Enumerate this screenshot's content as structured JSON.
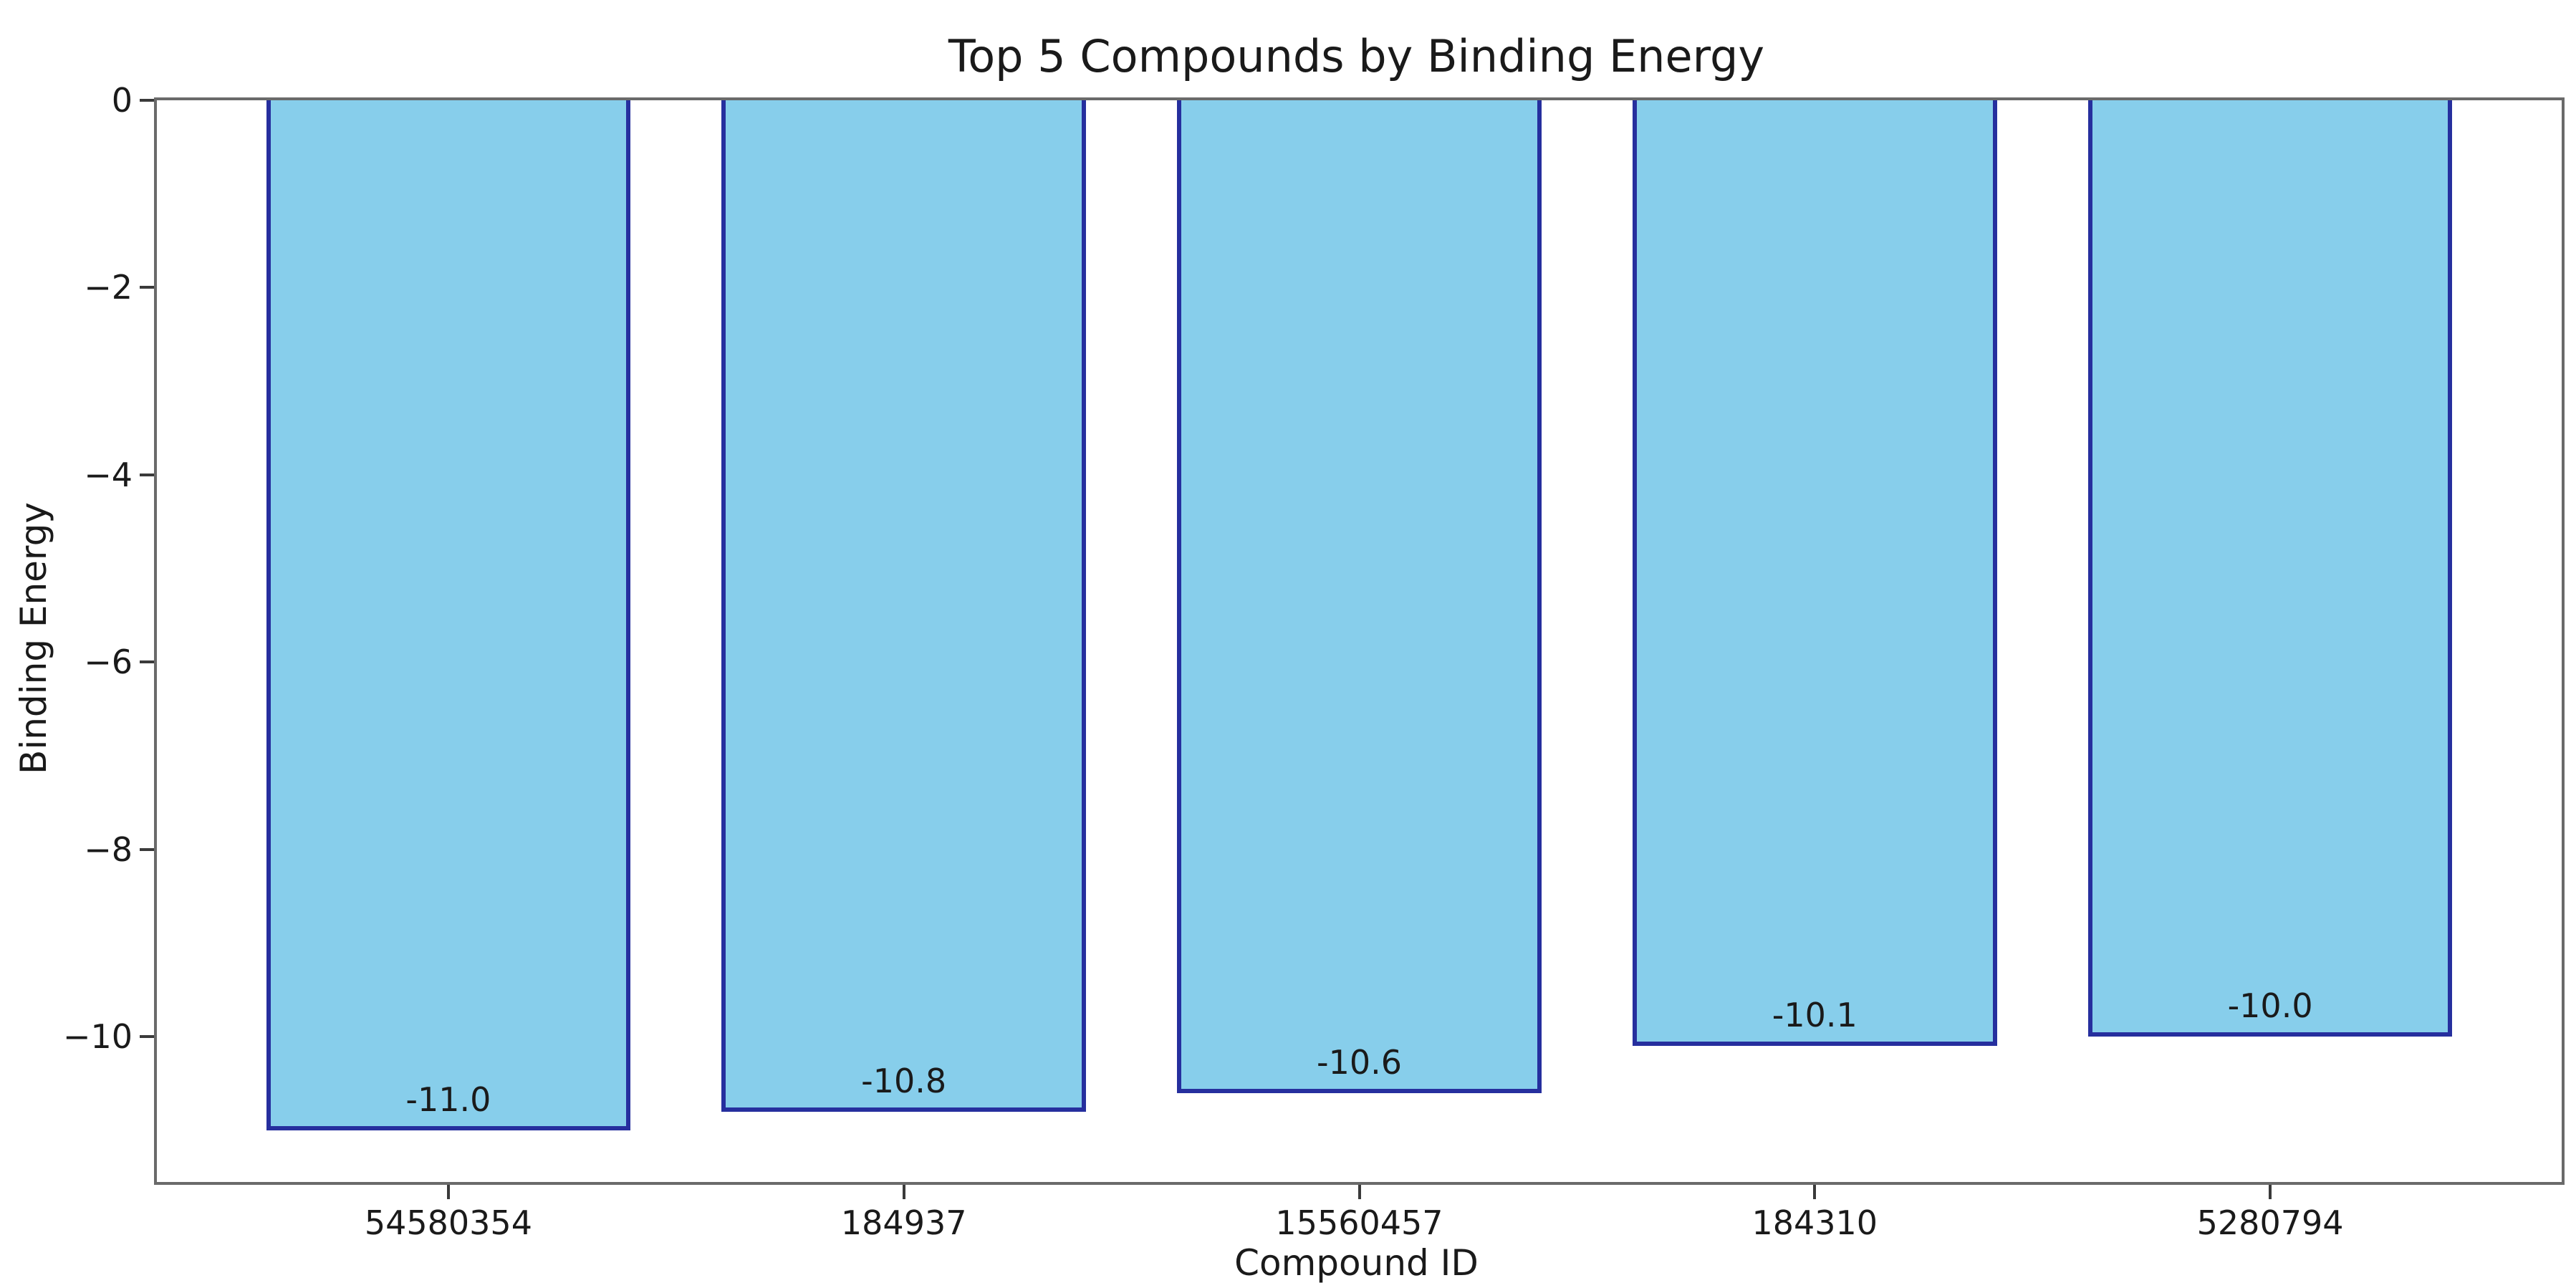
{
  "figure": {
    "background_color": "#ffffff"
  },
  "chart_data": {
    "type": "bar",
    "title": "Top 5 Compounds by Binding Energy",
    "xlabel": "Compound ID",
    "ylabel": "Binding Energy",
    "categories": [
      "54580354",
      "184937",
      "15560457",
      "184310",
      "5280794"
    ],
    "values": [
      -11.0,
      -10.8,
      -10.6,
      -10.1,
      -10.0
    ],
    "bar_value_labels": [
      "-11.0",
      "-10.8",
      "-10.6",
      "-10.1",
      "-10.0"
    ],
    "yticks": [
      0,
      -2,
      -4,
      -6,
      -8,
      -10
    ],
    "ytick_labels": [
      "0",
      "−2",
      "−4",
      "−6",
      "−8",
      "−10"
    ],
    "ylim": [
      -11.55,
      0
    ],
    "grid": false,
    "legend": null,
    "bar_fill_color": "#87CEEB",
    "bar_edge_color": "#262f9e",
    "spine_color": "#6a6a6a",
    "text_color": "#1a1a1a"
  }
}
